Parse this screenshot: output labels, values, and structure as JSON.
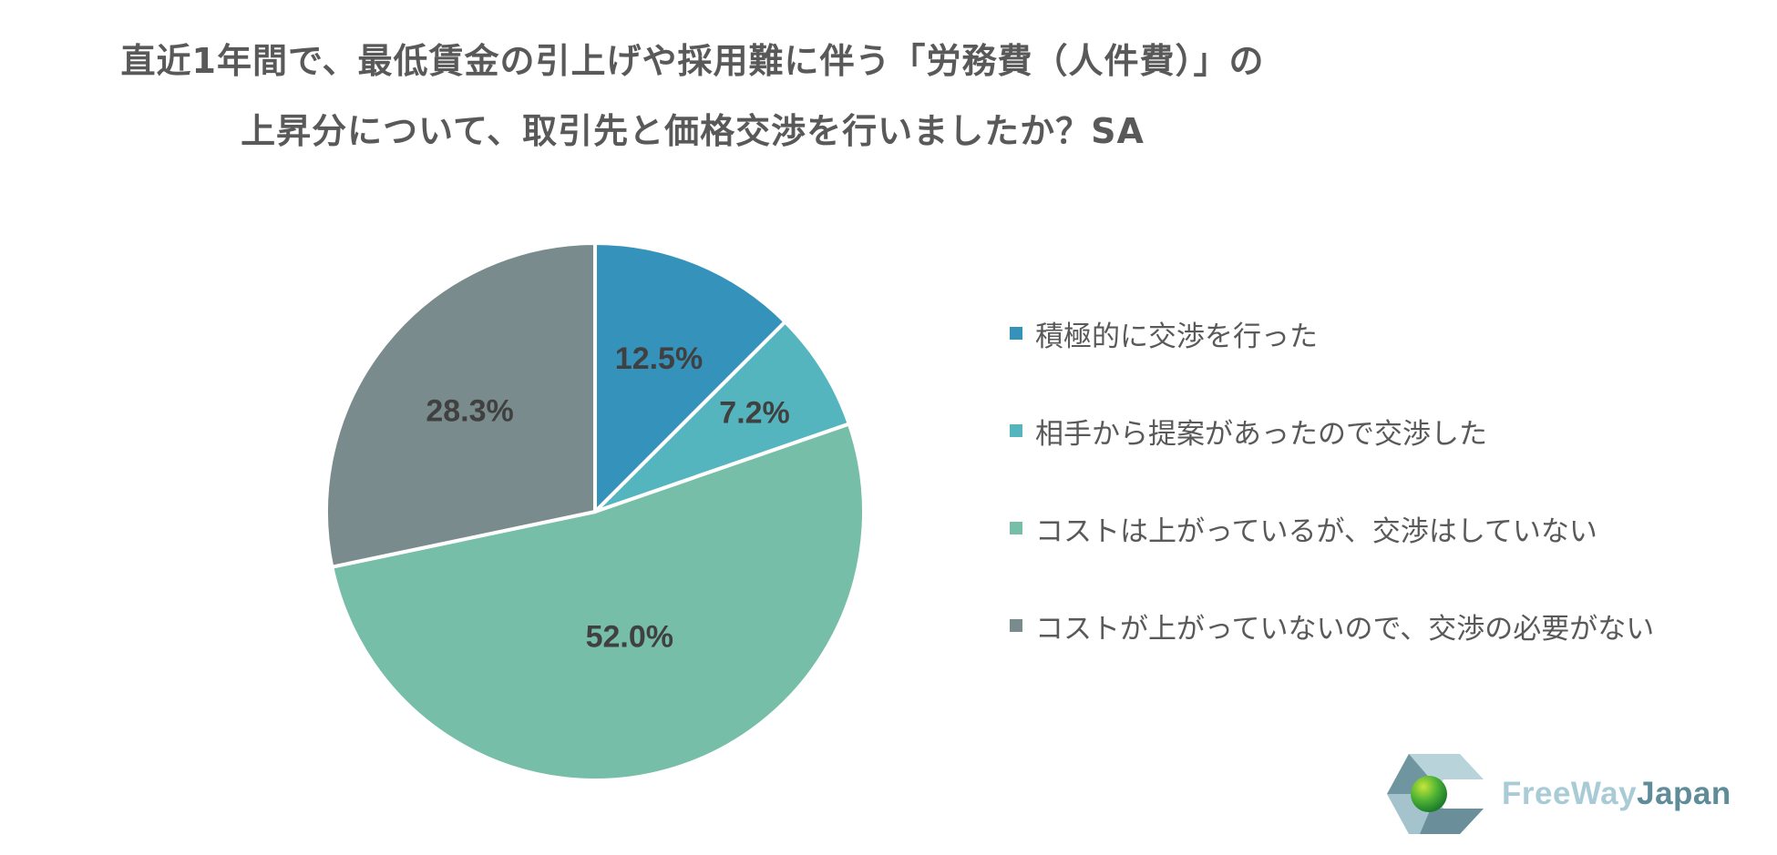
{
  "header": {
    "title_line1": "直近1年間で、最低賃金の引上げや採用難に伴う「労務費（人件費）」の",
    "title_line2": "上昇分について、取引先と価格交渉を行いましたか？SA"
  },
  "chart_data": {
    "type": "pie",
    "title": "直近1年間で、最低賃金の引上げや採用難に伴う「労務費（人件費）」の上昇分について、取引先と価格交渉を行いましたか？SA",
    "categories": [
      "積極的に交渉を行った",
      "相手から提案があったので交渉した",
      "コストは上がっているが、交渉はしていない",
      "コストが上がっていないので、交渉の必要がない"
    ],
    "values": [
      12.5,
      7.2,
      52.0,
      28.3
    ],
    "labels": [
      "12.5%",
      "7.2%",
      "52.0%",
      "28.3%"
    ],
    "colors": [
      "#3592bb",
      "#55b5bf",
      "#76bea8",
      "#798b8c"
    ],
    "unit": "%",
    "start_angle": "12 o'clock, clockwise",
    "legend_position": "right"
  },
  "legend": {
    "items": [
      {
        "label": "積極的に交渉を行った",
        "color": "#3592bb"
      },
      {
        "label": "相手から提案があったので交渉した",
        "color": "#55b5bf"
      },
      {
        "label": "コストは上がっているが、交渉はしていない",
        "color": "#76bea8"
      },
      {
        "label": "コストが上がっていないので、交渉の必要がない",
        "color": "#798b8c"
      }
    ]
  },
  "logo": {
    "part1": "FreeWay",
    "part2": "Japan"
  }
}
